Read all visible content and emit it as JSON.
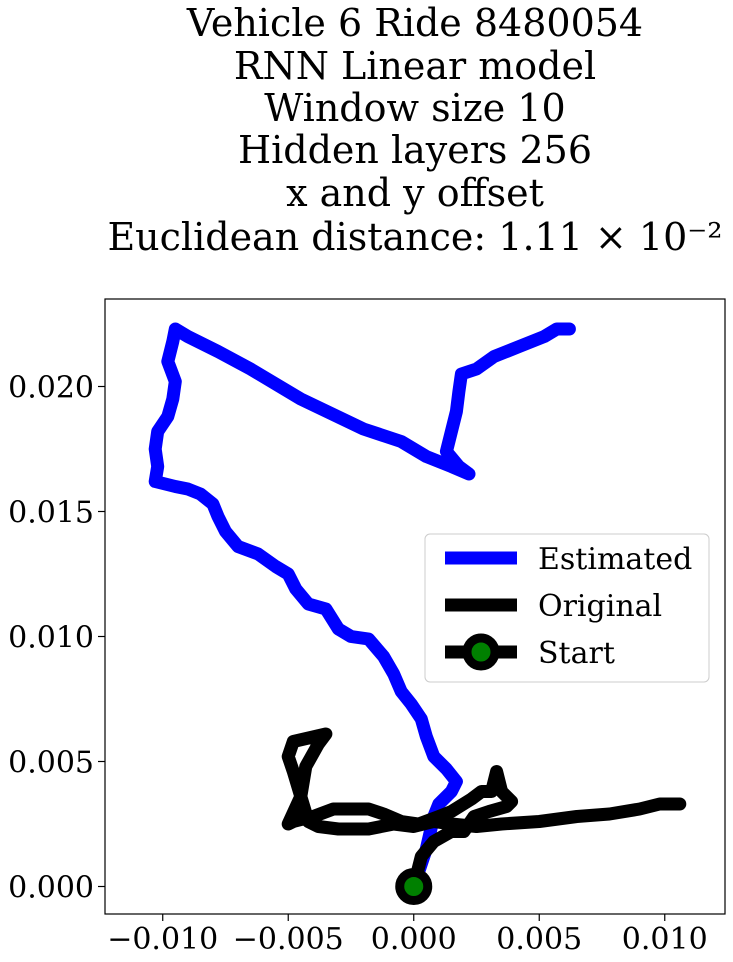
{
  "chart_data": {
    "type": "line",
    "title_lines": [
      "Vehicle 6 Ride 8480054",
      "RNN Linear model",
      "Window size 10",
      "Hidden layers 256",
      "x and y offset",
      "Euclidean distance: 1.11 × 10⁻²"
    ],
    "xlabel": "",
    "ylabel": "",
    "xlim": [
      -0.0123,
      0.0124
    ],
    "ylim": [
      -0.0011,
      0.0235
    ],
    "xticks": [
      -0.01,
      -0.005,
      0.0,
      0.005,
      0.01
    ],
    "xtick_labels": [
      "−0.010",
      "−0.005",
      "0.000",
      "0.005",
      "0.010"
    ],
    "yticks": [
      0.0,
      0.005,
      0.01,
      0.015,
      0.02
    ],
    "ytick_labels": [
      "0.000",
      "0.005",
      "0.010",
      "0.015",
      "0.020"
    ],
    "grid": false,
    "legend_position": "center-right",
    "series": [
      {
        "name": "Estimated",
        "color": "#0000ff",
        "points": [
          [
            0.0,
            0.0
          ],
          [
            0.0005,
            0.0015
          ],
          [
            0.0008,
            0.0028
          ],
          [
            0.001,
            0.0033
          ],
          [
            0.0015,
            0.0038
          ],
          [
            0.0017,
            0.0042
          ],
          [
            0.0013,
            0.0047
          ],
          [
            0.0008,
            0.0052
          ],
          [
            0.0005,
            0.006
          ],
          [
            0.0003,
            0.0067
          ],
          [
            -0.0001,
            0.0073
          ],
          [
            -0.0005,
            0.0078
          ],
          [
            -0.0008,
            0.0085
          ],
          [
            -0.0012,
            0.0092
          ],
          [
            -0.0018,
            0.0099
          ],
          [
            -0.0025,
            0.01
          ],
          [
            -0.003,
            0.0103
          ],
          [
            -0.0035,
            0.0111
          ],
          [
            -0.0042,
            0.0113
          ],
          [
            -0.0047,
            0.0119
          ],
          [
            -0.005,
            0.0125
          ],
          [
            -0.0055,
            0.0128
          ],
          [
            -0.0062,
            0.0133
          ],
          [
            -0.007,
            0.0136
          ],
          [
            -0.0075,
            0.0142
          ],
          [
            -0.0078,
            0.0148
          ],
          [
            -0.008,
            0.0153
          ],
          [
            -0.0085,
            0.0157
          ],
          [
            -0.009,
            0.0159
          ],
          [
            -0.0095,
            0.016
          ],
          [
            -0.0103,
            0.0162
          ],
          [
            -0.0102,
            0.0168
          ],
          [
            -0.0103,
            0.0175
          ],
          [
            -0.0102,
            0.0182
          ],
          [
            -0.0098,
            0.0188
          ],
          [
            -0.0096,
            0.0195
          ],
          [
            -0.0095,
            0.0202
          ],
          [
            -0.0098,
            0.021
          ],
          [
            -0.0096,
            0.0218
          ],
          [
            -0.0095,
            0.0223
          ],
          [
            -0.009,
            0.022
          ],
          [
            -0.0078,
            0.0214
          ],
          [
            -0.0065,
            0.0207
          ],
          [
            -0.0045,
            0.0195
          ],
          [
            -0.002,
            0.0183
          ],
          [
            -0.0005,
            0.0178
          ],
          [
            0.0005,
            0.0172
          ],
          [
            0.0015,
            0.0168
          ],
          [
            0.0022,
            0.0165
          ],
          [
            0.0018,
            0.0168
          ],
          [
            0.0013,
            0.0174
          ],
          [
            0.0015,
            0.0182
          ],
          [
            0.0017,
            0.019
          ],
          [
            0.0018,
            0.0198
          ],
          [
            0.0019,
            0.0205
          ],
          [
            0.0025,
            0.0207
          ],
          [
            0.0032,
            0.0212
          ],
          [
            0.0042,
            0.0216
          ],
          [
            0.0052,
            0.022
          ],
          [
            0.0057,
            0.0223
          ],
          [
            0.0062,
            0.0223
          ]
        ]
      },
      {
        "name": "Original",
        "color": "#000000",
        "points": [
          [
            0.0,
            0.0
          ],
          [
            0.0003,
            0.0012
          ],
          [
            0.0008,
            0.0018
          ],
          [
            0.0015,
            0.0022
          ],
          [
            0.002,
            0.0022
          ],
          [
            0.0024,
            0.0028
          ],
          [
            0.003,
            0.003
          ],
          [
            0.0037,
            0.0032
          ],
          [
            0.0039,
            0.0034
          ],
          [
            0.0035,
            0.0038
          ],
          [
            0.0033,
            0.0046
          ],
          [
            0.0031,
            0.0038
          ],
          [
            0.0027,
            0.0038
          ],
          [
            0.0023,
            0.0035
          ],
          [
            0.0015,
            0.003
          ],
          [
            0.001,
            0.0028
          ],
          [
            0.0002,
            0.0025
          ],
          [
            -0.0005,
            0.0026
          ],
          [
            -0.0012,
            0.0029
          ],
          [
            -0.0018,
            0.0031
          ],
          [
            -0.0025,
            0.0031
          ],
          [
            -0.0032,
            0.0031
          ],
          [
            -0.004,
            0.0028
          ],
          [
            -0.0048,
            0.0026
          ],
          [
            -0.005,
            0.0025
          ],
          [
            -0.0045,
            0.0036
          ],
          [
            -0.0043,
            0.0048
          ],
          [
            -0.0038,
            0.0057
          ],
          [
            -0.0035,
            0.0061
          ],
          [
            -0.0048,
            0.0058
          ],
          [
            -0.005,
            0.0052
          ],
          [
            -0.0048,
            0.0046
          ],
          [
            -0.0045,
            0.0036
          ],
          [
            -0.0042,
            0.0026
          ],
          [
            -0.0038,
            0.0024
          ],
          [
            -0.003,
            0.0023
          ],
          [
            -0.0018,
            0.0023
          ],
          [
            -0.0008,
            0.0025
          ],
          [
            0.0,
            0.0024
          ],
          [
            0.0008,
            0.0026
          ],
          [
            0.0015,
            0.0025
          ],
          [
            0.0025,
            0.0024
          ],
          [
            0.0035,
            0.0025
          ],
          [
            0.005,
            0.0026
          ],
          [
            0.0065,
            0.0028
          ],
          [
            0.0078,
            0.0029
          ],
          [
            0.009,
            0.0031
          ],
          [
            0.0098,
            0.0033
          ],
          [
            0.0103,
            0.0033
          ],
          [
            0.0106,
            0.0033
          ]
        ]
      }
    ],
    "start_marker": {
      "name": "Start",
      "x": 0.0,
      "y": 0.0,
      "edge_color": "#000000",
      "face_color": "#008000"
    }
  }
}
